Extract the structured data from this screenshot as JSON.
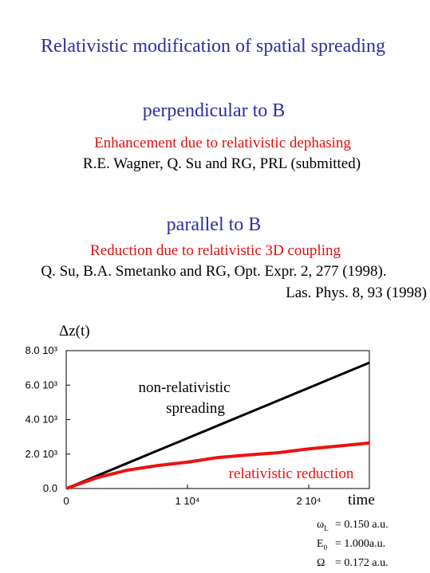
{
  "slide": {
    "title": "Relativistic modification of spatial spreading",
    "sections": [
      {
        "heading": "perpendicular to B",
        "subtitle": "Enhancement due to relativistic dephasing",
        "references": [
          "R.E. Wagner, Q. Su and RG, PRL (submitted)"
        ]
      },
      {
        "heading": "parallel to B",
        "subtitle": "Reduction due to relativistic 3D coupling",
        "references": [
          "Q. Su, B.A.  Smetanko and RG, Opt. Expr. 2, 277 (1998).",
          "Las. Phys. 8, 93  (1998)"
        ]
      }
    ],
    "parameters": [
      {
        "symbol": "ω",
        "sub": "L",
        "value": "= 0.150 a.u."
      },
      {
        "symbol": "E",
        "sub": "0",
        "value": "= 1.000a.u."
      },
      {
        "symbol": "Ω",
        "sub": "",
        "value": "= 0.172 a.u."
      }
    ]
  },
  "chart_data": {
    "type": "line",
    "ylabel": "Δz(t)",
    "xlabel": "time",
    "x": [
      0,
      2500,
      5000,
      7500,
      10000,
      12500,
      15000,
      17500,
      20000,
      22500,
      25000
    ],
    "series": [
      {
        "name": "non-relativistic spreading",
        "label_lines": [
          "non-relativistic",
          "spreading"
        ],
        "color": "#000000",
        "values": [
          0,
          730,
          1460,
          2190,
          2920,
          3650,
          4380,
          5110,
          5840,
          6570,
          7300
        ]
      },
      {
        "name": "relativistic reduction",
        "label_lines": [
          "relativistic reduction"
        ],
        "color": "#ee1111",
        "values": [
          0,
          620,
          1060,
          1330,
          1530,
          1800,
          1950,
          2080,
          2300,
          2470,
          2640
        ]
      }
    ],
    "xlim": [
      0,
      25000
    ],
    "ylim": [
      0,
      8000
    ],
    "xticks": [
      0,
      {
        "value": 10000,
        "label": "1 10⁴"
      },
      {
        "value": 20000,
        "label": "2 10⁴"
      }
    ],
    "yticks": [
      {
        "value": 0,
        "label": "0.0"
      },
      {
        "value": 2000,
        "label": "2.0 10³"
      },
      {
        "value": 4000,
        "label": "4.0 10³"
      },
      {
        "value": 6000,
        "label": "6.0 10³"
      },
      {
        "value": 8000,
        "label": "8.0 10³"
      }
    ]
  }
}
